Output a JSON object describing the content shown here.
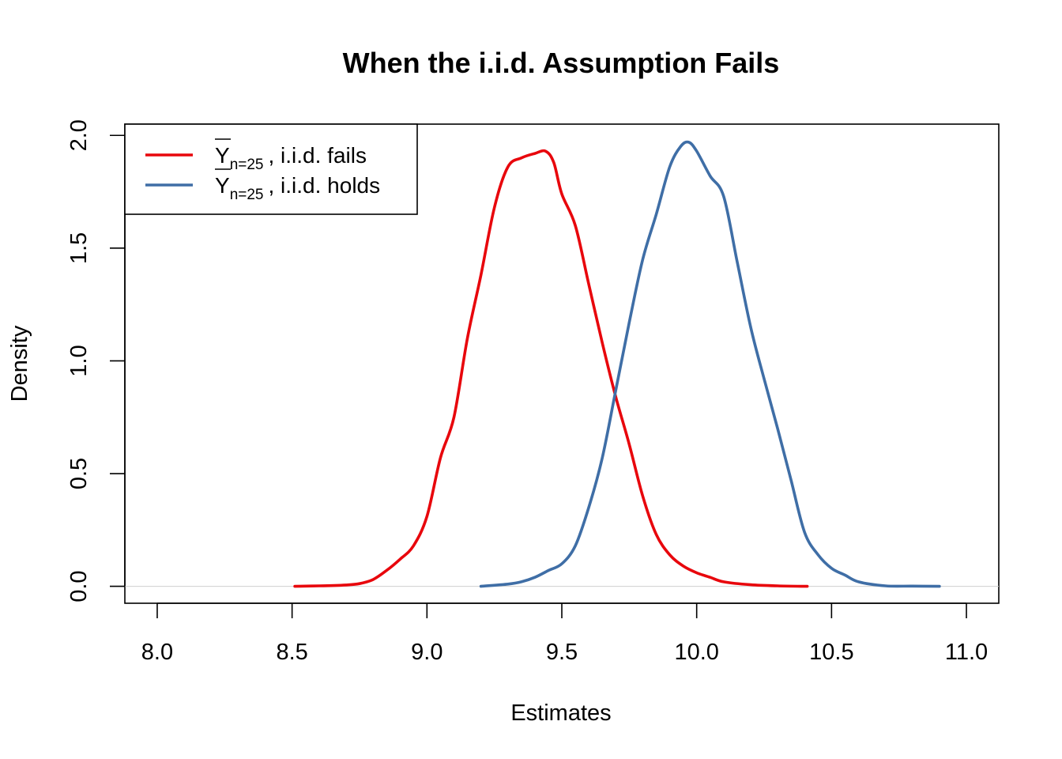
{
  "chart_data": {
    "type": "line",
    "title": "When the i.i.d. Assumption Fails",
    "xlabel": "Estimates",
    "ylabel": "Density",
    "xlim": [
      7.88,
      11.12
    ],
    "ylim": [
      -0.075,
      2.05
    ],
    "xticks": [
      8.0,
      8.5,
      9.0,
      9.5,
      10.0,
      10.5,
      11.0
    ],
    "xtick_labels": [
      "8.0",
      "8.5",
      "9.0",
      "9.5",
      "10.0",
      "10.5",
      "11.0"
    ],
    "yticks": [
      0.0,
      0.5,
      1.0,
      1.5,
      2.0
    ],
    "ytick_labels": [
      "0.0",
      "0.5",
      "1.0",
      "1.5",
      "2.0"
    ],
    "baseline": 0,
    "legend_position": "top-left",
    "series": [
      {
        "legend_main": "Y",
        "legend_sub": "n=25",
        "legend_rest": ", i.i.d. fails",
        "color": "#e8060c",
        "x": [
          8.51,
          8.6,
          8.7,
          8.75,
          8.8,
          8.85,
          8.9,
          8.95,
          9.0,
          9.05,
          9.1,
          9.15,
          9.2,
          9.25,
          9.3,
          9.35,
          9.4,
          9.44,
          9.47,
          9.5,
          9.55,
          9.6,
          9.65,
          9.7,
          9.75,
          9.8,
          9.85,
          9.9,
          9.95,
          10.0,
          10.05,
          10.1,
          10.2,
          10.3,
          10.41
        ],
        "y": [
          0.0,
          0.002,
          0.006,
          0.012,
          0.03,
          0.07,
          0.12,
          0.18,
          0.31,
          0.57,
          0.75,
          1.1,
          1.38,
          1.68,
          1.86,
          1.9,
          1.92,
          1.93,
          1.88,
          1.74,
          1.6,
          1.34,
          1.08,
          0.84,
          0.63,
          0.4,
          0.23,
          0.14,
          0.09,
          0.06,
          0.04,
          0.02,
          0.007,
          0.002,
          0.0
        ]
      },
      {
        "legend_main": "Y",
        "legend_sub": "n=25",
        "legend_rest": ", i.i.d. holds",
        "color": "#3f6ea6",
        "x": [
          9.2,
          9.3,
          9.35,
          9.4,
          9.45,
          9.5,
          9.55,
          9.6,
          9.65,
          9.7,
          9.75,
          9.8,
          9.85,
          9.9,
          9.94,
          9.97,
          10.0,
          10.05,
          10.1,
          10.15,
          10.2,
          10.25,
          10.3,
          10.35,
          10.4,
          10.45,
          10.5,
          10.55,
          10.6,
          10.7,
          10.8,
          10.9
        ],
        "y": [
          0.0,
          0.01,
          0.02,
          0.04,
          0.07,
          0.1,
          0.18,
          0.35,
          0.57,
          0.87,
          1.17,
          1.45,
          1.65,
          1.86,
          1.95,
          1.97,
          1.93,
          1.82,
          1.73,
          1.44,
          1.15,
          0.92,
          0.7,
          0.47,
          0.24,
          0.14,
          0.08,
          0.05,
          0.02,
          0.002,
          0.001,
          0.0
        ]
      }
    ]
  }
}
